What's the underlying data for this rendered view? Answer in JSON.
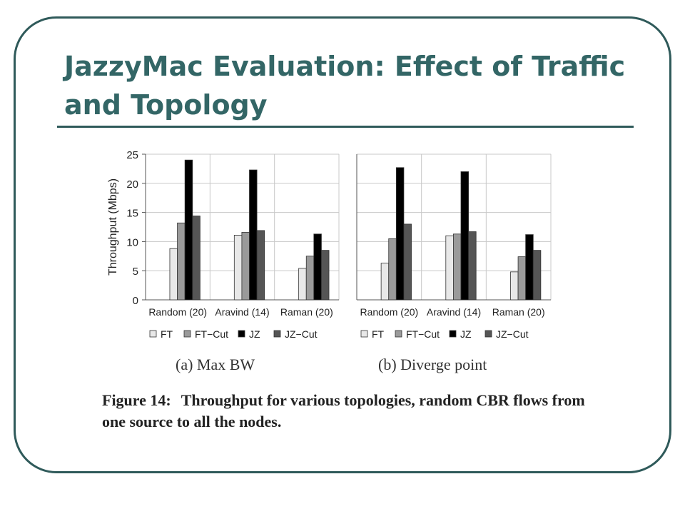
{
  "slide": {
    "title": "JazzyMac Evaluation: Effect of Traffic and Topology",
    "caption_number": "Figure 14:",
    "caption_text": "Throughput for various topologies, random CBR flows from one source to all the nodes."
  },
  "chart_data": [
    {
      "type": "bar",
      "subcaption": "(a)  Max BW",
      "categories": [
        "Random (20)",
        "Aravind (14)",
        "Raman (20)"
      ],
      "series": [
        {
          "name": "FT",
          "color": "#e8e8e8",
          "values": [
            8.8,
            11.1,
            5.4
          ]
        },
        {
          "name": "FT−Cut",
          "color": "#9a9a9a",
          "values": [
            13.2,
            11.6,
            7.5
          ]
        },
        {
          "name": "JZ",
          "color": "#000000",
          "values": [
            24.0,
            22.3,
            11.3
          ]
        },
        {
          "name": "JZ−Cut",
          "color": "#555555",
          "values": [
            14.4,
            11.9,
            8.5
          ]
        }
      ],
      "ylabel": "Throughput (Mbps)",
      "ylim": [
        0,
        25
      ],
      "yticks": [
        0,
        5,
        10,
        15,
        20,
        25
      ],
      "grid": true,
      "legend": "bottom"
    },
    {
      "type": "bar",
      "subcaption": "(b)  Diverge point",
      "categories": [
        "Random (20)",
        "Aravind (14)",
        "Raman (20)"
      ],
      "series": [
        {
          "name": "FT",
          "color": "#e8e8e8",
          "values": [
            6.3,
            11.0,
            4.8
          ]
        },
        {
          "name": "FT−Cut",
          "color": "#9a9a9a",
          "values": [
            10.5,
            11.3,
            7.4
          ]
        },
        {
          "name": "JZ",
          "color": "#000000",
          "values": [
            22.7,
            22.0,
            11.2
          ]
        },
        {
          "name": "JZ−Cut",
          "color": "#555555",
          "values": [
            13.0,
            11.7,
            8.5
          ]
        }
      ],
      "ylim": [
        0,
        25
      ],
      "grid": true,
      "legend": "bottom"
    }
  ]
}
